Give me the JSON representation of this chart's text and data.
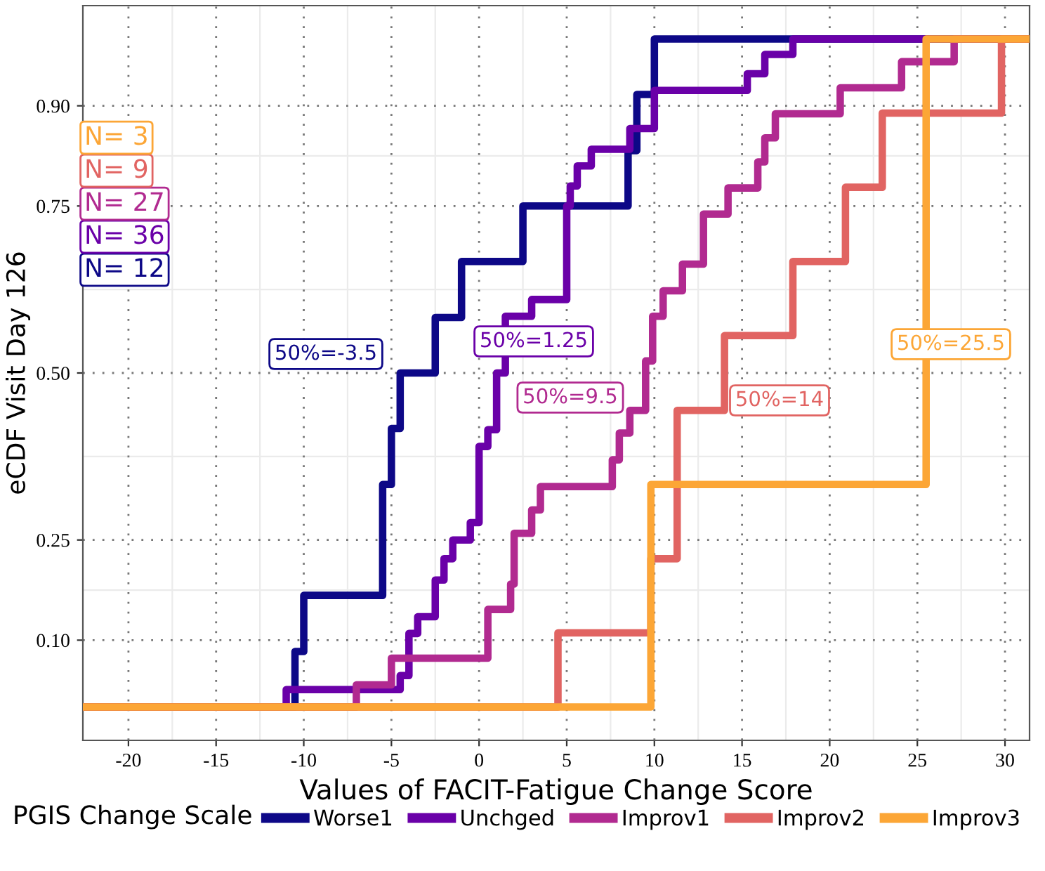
{
  "chart_data": {
    "type": "step",
    "xlabel": "Values of FACIT-Fatigue Change Score",
    "ylabel": "eCDF Visit Day 126",
    "legend_title": "PGIS Change Scale",
    "xlim": [
      -22.6,
      31.4
    ],
    "ylim": [
      -0.05,
      1.05
    ],
    "xticks": [
      -20,
      -15,
      -10,
      -5,
      0,
      5,
      10,
      15,
      20,
      25,
      30
    ],
    "yticks": [
      {
        "value": 0.1,
        "label": "0.10"
      },
      {
        "value": 0.25,
        "label": "0.25"
      },
      {
        "value": 0.5,
        "label": "0.50"
      },
      {
        "value": 0.75,
        "label": "0.75"
      },
      {
        "value": 0.9,
        "label": "0.90"
      }
    ],
    "grid": true,
    "legend": "bottom",
    "line_style": "solid",
    "marker": "none",
    "series": [
      {
        "name": "Worse1",
        "color": "#0d0887",
        "x": [
          -22.6,
          -10.5,
          -10,
          -5.5,
          -5,
          -4.5,
          -2.5,
          -1,
          2.5,
          8.5,
          9,
          10,
          31.4
        ],
        "values": [
          0,
          0.083,
          0.167,
          0.333,
          0.417,
          0.5,
          0.583,
          0.667,
          0.75,
          0.833,
          0.917,
          1,
          1
        ]
      },
      {
        "name": "Unchged",
        "color": "#6a00a8",
        "x": [
          -22.6,
          -11,
          -4.5,
          -4,
          -3.5,
          -2.5,
          -2,
          -1.5,
          -0.5,
          0,
          0.5,
          1,
          1.5,
          3,
          5,
          5.2,
          5.6,
          6.4,
          8.6,
          10,
          15.3,
          16.3,
          17.9,
          31.4
        ],
        "values": [
          0,
          0.026,
          0.047,
          0.11,
          0.135,
          0.19,
          0.222,
          0.25,
          0.276,
          0.39,
          0.415,
          0.5,
          0.585,
          0.61,
          0.75,
          0.78,
          0.81,
          0.835,
          0.866,
          0.923,
          0.948,
          0.977,
          1,
          1
        ]
      },
      {
        "name": "Improv1",
        "color": "#b12a90",
        "x": [
          -22.6,
          -7,
          -5,
          0.5,
          1.8,
          2,
          3,
          3.5,
          7.6,
          8,
          8.6,
          9.5,
          9.9,
          10.5,
          11.6,
          12.8,
          14.2,
          15.9,
          16.3,
          16.9,
          20.6,
          24.1,
          27.1,
          31.4
        ],
        "values": [
          0,
          0.033,
          0.073,
          0.146,
          0.184,
          0.26,
          0.295,
          0.33,
          0.37,
          0.41,
          0.444,
          0.518,
          0.585,
          0.623,
          0.663,
          0.738,
          0.777,
          0.816,
          0.852,
          0.888,
          0.927,
          0.966,
          1,
          1
        ]
      },
      {
        "name": "Improv2",
        "color": "#e16462",
        "x": [
          -22.6,
          4.5,
          9.8,
          11.3,
          14,
          17.9,
          20.9,
          23,
          29.8,
          31.4
        ],
        "values": [
          0,
          0.111,
          0.222,
          0.444,
          0.556,
          0.667,
          0.778,
          0.889,
          1,
          1
        ]
      },
      {
        "name": "Improv3",
        "color": "#fca636",
        "x": [
          -22.6,
          9.8,
          25.5,
          31.4
        ],
        "values": [
          0,
          0.333,
          1,
          1
        ]
      }
    ],
    "annotations": [
      "50%=-3.5",
      "50%=1.25",
      "50%=9.5",
      "50%=14",
      "50%=25.5",
      "N= 12",
      "N= 36",
      "N= 27",
      "N= 9",
      "N= 3"
    ]
  }
}
